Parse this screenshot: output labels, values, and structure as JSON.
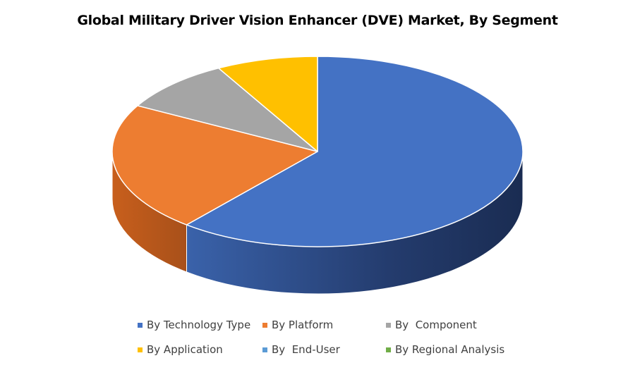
{
  "chart_data": {
    "type": "pie",
    "title": "Global Military Driver Vision Enhancer (DVE) Market, By Segment",
    "categories": [
      "By Technology Type",
      "By Platform",
      "By  Component",
      "By Application",
      "By  End-User",
      "By Regional Analysis"
    ],
    "values": [
      61,
      22,
      9,
      8,
      0,
      0
    ],
    "colors": [
      "#4472c4",
      "#ed7d31",
      "#a5a5a5",
      "#ffc000",
      "#5b9bd5",
      "#70ad47"
    ],
    "legend_position": "bottom",
    "style": "3d"
  }
}
